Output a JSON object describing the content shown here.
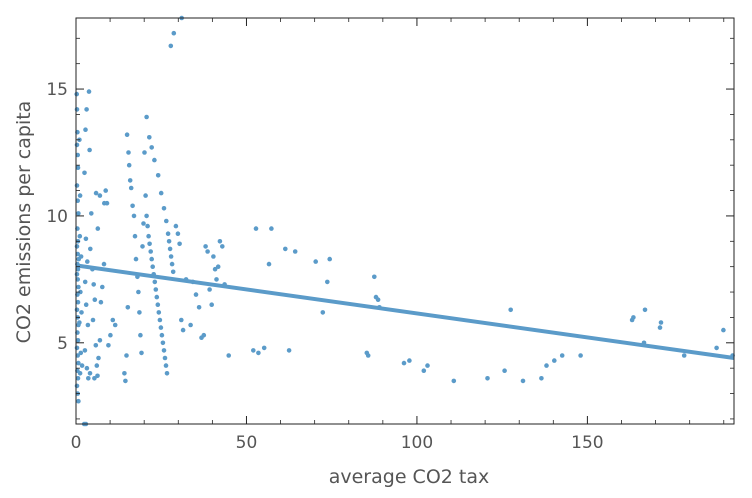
{
  "chart_data": {
    "type": "scatter",
    "title": "",
    "xlabel": "average CO2 tax",
    "ylabel": "CO2 emissions per capita",
    "xlim": [
      0,
      193
    ],
    "ylim": [
      1.8,
      17.8
    ],
    "xticks": [
      0,
      50,
      100,
      150
    ],
    "yticks": [
      5,
      10,
      15
    ],
    "grid": false,
    "frame": true,
    "colors": {
      "points": "#5b9bc9",
      "fit_line": "#5b9bc9",
      "frame": "#222222",
      "text": "#555555"
    },
    "fit_line": {
      "x": [
        0,
        193
      ],
      "y": [
        8.05,
        4.4
      ]
    },
    "points": [
      [
        0.2,
        14.8
      ],
      [
        0.3,
        14.2
      ],
      [
        0.4,
        13.3
      ],
      [
        0.3,
        12.8
      ],
      [
        0.5,
        12.4
      ],
      [
        0.6,
        11.9
      ],
      [
        0.3,
        11.2
      ],
      [
        0.5,
        10.6
      ],
      [
        0.7,
        10.1
      ],
      [
        0.4,
        9.5
      ],
      [
        0.6,
        9.0
      ],
      [
        0.3,
        8.8
      ],
      [
        0.5,
        8.5
      ],
      [
        0.8,
        8.3
      ],
      [
        0.4,
        8.1
      ],
      [
        0.6,
        7.9
      ],
      [
        0.3,
        7.7
      ],
      [
        0.5,
        7.5
      ],
      [
        0.7,
        7.2
      ],
      [
        0.4,
        6.9
      ],
      [
        0.6,
        6.6
      ],
      [
        0.3,
        6.3
      ],
      [
        0.5,
        6.0
      ],
      [
        0.7,
        5.7
      ],
      [
        0.4,
        5.4
      ],
      [
        0.6,
        5.1
      ],
      [
        0.3,
        4.8
      ],
      [
        0.5,
        4.5
      ],
      [
        0.7,
        4.2
      ],
      [
        0.4,
        3.9
      ],
      [
        0.6,
        3.6
      ],
      [
        0.3,
        3.3
      ],
      [
        0.5,
        3.0
      ],
      [
        0.7,
        2.7
      ],
      [
        1.0,
        13.0
      ],
      [
        1.2,
        10.8
      ],
      [
        1.1,
        9.2
      ],
      [
        1.3,
        7.0
      ],
      [
        1.0,
        5.8
      ],
      [
        1.4,
        4.6
      ],
      [
        1.2,
        3.8
      ],
      [
        1.5,
        8.4
      ],
      [
        1.6,
        6.2
      ],
      [
        1.8,
        4.1
      ],
      [
        2.4,
        1.8
      ],
      [
        2.9,
        1.8
      ],
      [
        2.8,
        13.4
      ],
      [
        3.1,
        14.2
      ],
      [
        2.5,
        11.7
      ],
      [
        2.9,
        9.1
      ],
      [
        3.3,
        8.2
      ],
      [
        2.7,
        7.4
      ],
      [
        3.0,
        6.5
      ],
      [
        3.5,
        5.7
      ],
      [
        2.6,
        4.7
      ],
      [
        3.2,
        4.0
      ],
      [
        3.6,
        3.6
      ],
      [
        4.1,
        3.8
      ],
      [
        3.8,
        14.9
      ],
      [
        4.0,
        12.6
      ],
      [
        4.5,
        10.1
      ],
      [
        4.2,
        8.7
      ],
      [
        4.8,
        7.9
      ],
      [
        5.2,
        7.3
      ],
      [
        5.5,
        6.7
      ],
      [
        5.0,
        5.9
      ],
      [
        5.8,
        4.9
      ],
      [
        6.1,
        4.1
      ],
      [
        5.4,
        3.6
      ],
      [
        6.3,
        3.7
      ],
      [
        6.6,
        4.4
      ],
      [
        7.0,
        5.1
      ],
      [
        7.3,
        6.6
      ],
      [
        7.7,
        7.2
      ],
      [
        8.2,
        8.1
      ],
      [
        5.9,
        10.9
      ],
      [
        7.0,
        10.8
      ],
      [
        8.3,
        10.5
      ],
      [
        9.1,
        10.5
      ],
      [
        8.7,
        11.0
      ],
      [
        6.4,
        9.5
      ],
      [
        9.5,
        4.9
      ],
      [
        10.1,
        5.3
      ],
      [
        10.8,
        5.9
      ],
      [
        11.5,
        5.7
      ],
      [
        14.2,
        3.8
      ],
      [
        14.5,
        3.5
      ],
      [
        14.8,
        4.5
      ],
      [
        15.2,
        6.4
      ],
      [
        15.0,
        13.2
      ],
      [
        15.6,
        12.0
      ],
      [
        15.9,
        11.4
      ],
      [
        15.4,
        12.5
      ],
      [
        16.2,
        11.1
      ],
      [
        16.6,
        10.4
      ],
      [
        17.0,
        10.0
      ],
      [
        17.3,
        9.2
      ],
      [
        17.6,
        8.3
      ],
      [
        18.0,
        7.6
      ],
      [
        18.3,
        7.0
      ],
      [
        18.6,
        6.2
      ],
      [
        18.9,
        5.3
      ],
      [
        19.2,
        4.6
      ],
      [
        19.5,
        8.8
      ],
      [
        19.8,
        9.7
      ],
      [
        20.1,
        12.5
      ],
      [
        20.4,
        10.8
      ],
      [
        20.7,
        10.0
      ],
      [
        21.0,
        9.6
      ],
      [
        21.3,
        9.2
      ],
      [
        21.6,
        8.9
      ],
      [
        21.9,
        8.6
      ],
      [
        22.2,
        8.3
      ],
      [
        22.5,
        8.0
      ],
      [
        22.8,
        7.7
      ],
      [
        23.1,
        7.4
      ],
      [
        23.4,
        7.1
      ],
      [
        23.7,
        6.8
      ],
      [
        24.0,
        6.5
      ],
      [
        24.3,
        6.2
      ],
      [
        24.6,
        5.9
      ],
      [
        24.9,
        5.6
      ],
      [
        25.2,
        5.3
      ],
      [
        25.5,
        5.0
      ],
      [
        25.8,
        4.7
      ],
      [
        26.1,
        4.4
      ],
      [
        26.4,
        4.1
      ],
      [
        26.7,
        3.8
      ],
      [
        27.0,
        9.3
      ],
      [
        27.3,
        9.0
      ],
      [
        27.6,
        8.7
      ],
      [
        27.9,
        8.4
      ],
      [
        28.2,
        8.1
      ],
      [
        28.5,
        7.8
      ],
      [
        20.7,
        13.9
      ],
      [
        21.5,
        13.1
      ],
      [
        22.2,
        12.7
      ],
      [
        23.0,
        12.2
      ],
      [
        24.1,
        11.6
      ],
      [
        25.0,
        10.9
      ],
      [
        25.8,
        10.3
      ],
      [
        26.5,
        9.8
      ],
      [
        27.8,
        16.7
      ],
      [
        28.7,
        17.2
      ],
      [
        31.0,
        17.8
      ],
      [
        29.3,
        9.6
      ],
      [
        29.9,
        9.3
      ],
      [
        30.4,
        8.9
      ],
      [
        30.9,
        5.9
      ],
      [
        31.4,
        5.5
      ],
      [
        32.3,
        7.5
      ],
      [
        33.6,
        5.7
      ],
      [
        34.3,
        7.4
      ],
      [
        35.2,
        6.9
      ],
      [
        36.1,
        6.4
      ],
      [
        36.8,
        5.2
      ],
      [
        37.5,
        5.3
      ],
      [
        38.0,
        8.8
      ],
      [
        38.6,
        8.6
      ],
      [
        39.2,
        7.1
      ],
      [
        39.8,
        6.5
      ],
      [
        40.3,
        8.4
      ],
      [
        40.8,
        7.9
      ],
      [
        41.2,
        7.5
      ],
      [
        41.7,
        8.0
      ],
      [
        42.2,
        9.0
      ],
      [
        42.9,
        8.8
      ],
      [
        43.6,
        7.3
      ],
      [
        44.8,
        4.5
      ],
      [
        52.0,
        4.7
      ],
      [
        52.8,
        9.5
      ],
      [
        53.5,
        4.6
      ],
      [
        55.2,
        4.8
      ],
      [
        56.6,
        8.1
      ],
      [
        57.3,
        9.5
      ],
      [
        61.4,
        8.7
      ],
      [
        62.5,
        4.7
      ],
      [
        64.3,
        8.6
      ],
      [
        70.3,
        8.2
      ],
      [
        72.4,
        6.2
      ],
      [
        73.7,
        7.4
      ],
      [
        74.4,
        8.3
      ],
      [
        85.3,
        4.6
      ],
      [
        85.7,
        4.5
      ],
      [
        87.5,
        7.6
      ],
      [
        88.0,
        6.8
      ],
      [
        88.6,
        6.7
      ],
      [
        89.0,
        6.4
      ],
      [
        96.2,
        4.2
      ],
      [
        97.8,
        4.3
      ],
      [
        102.0,
        3.9
      ],
      [
        103.1,
        4.1
      ],
      [
        110.8,
        3.5
      ],
      [
        120.7,
        3.6
      ],
      [
        125.7,
        3.9
      ],
      [
        127.5,
        6.3
      ],
      [
        131.1,
        3.5
      ],
      [
        136.5,
        3.6
      ],
      [
        138.0,
        4.1
      ],
      [
        140.3,
        4.3
      ],
      [
        142.6,
        4.5
      ],
      [
        148.0,
        4.5
      ],
      [
        163.1,
        5.9
      ],
      [
        163.5,
        6.0
      ],
      [
        166.6,
        5.0
      ],
      [
        166.9,
        6.3
      ],
      [
        171.3,
        5.6
      ],
      [
        171.6,
        5.8
      ],
      [
        178.4,
        4.5
      ],
      [
        187.9,
        4.8
      ],
      [
        189.9,
        5.5
      ],
      [
        192.6,
        4.5
      ]
    ]
  }
}
